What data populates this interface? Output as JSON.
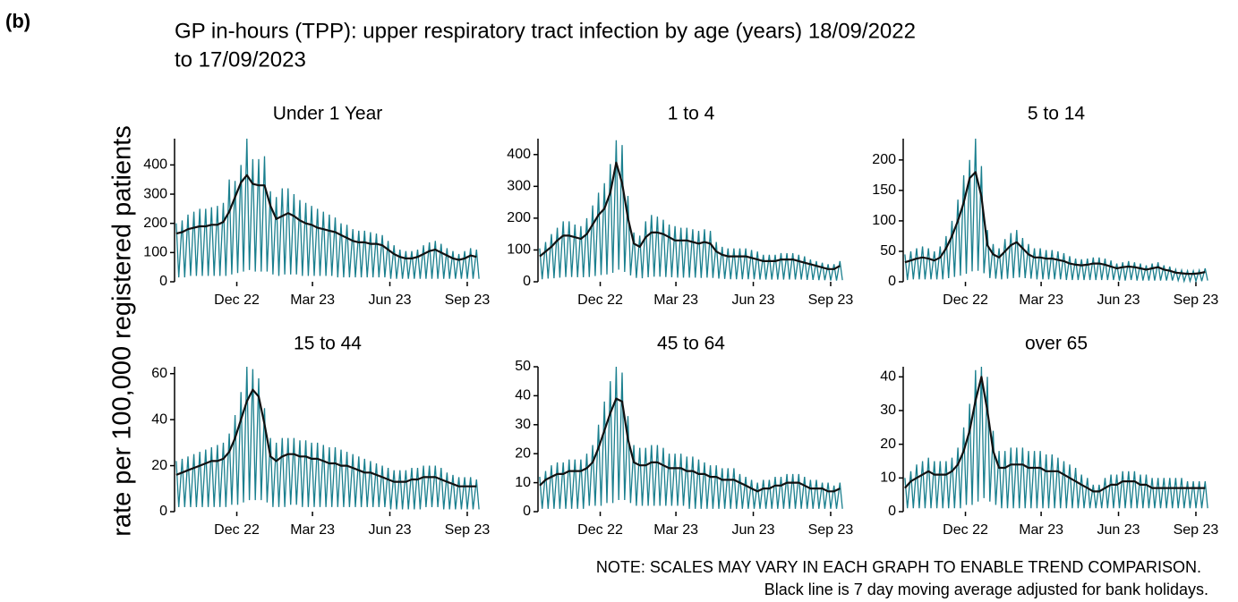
{
  "label": "(b)",
  "title_lines": [
    "GP in-hours (TPP): upper respiratory tract infection by age (years) 18/09/2022",
    "to 17/09/2023"
  ],
  "y_label": "rate per 100,000 registered patients",
  "notes": [
    "NOTE: SCALES MAY VARY IN EACH GRAPH TO ENABLE TREND COMPARISON.",
    "Black line is 7 day moving average adjusted for bank holidays."
  ],
  "daily_color": "#1a7f8e",
  "average_color": "#111111",
  "x_axis": {
    "xlim": [
      0,
      364
    ],
    "xticks": [
      {
        "value": 74,
        "label": "Dec 22"
      },
      {
        "value": 164,
        "label": "Mar 23"
      },
      {
        "value": 256,
        "label": "Jun 23"
      },
      {
        "value": 348,
        "label": "Sep 23"
      }
    ],
    "x_peak": [
      2,
      9,
      16,
      23,
      30,
      37,
      44,
      51,
      58,
      65,
      72,
      79,
      86,
      93,
      100,
      107,
      114,
      121,
      128,
      135,
      142,
      149,
      156,
      163,
      170,
      177,
      184,
      191,
      198,
      205,
      212,
      219,
      226,
      233,
      240,
      247,
      254,
      261,
      268,
      275,
      282,
      289,
      296,
      303,
      310,
      317,
      324,
      331,
      338,
      345,
      352,
      359
    ],
    "x_low": [
      5,
      12,
      19,
      26,
      33,
      40,
      47,
      54,
      61,
      68,
      75,
      82,
      89,
      96,
      103,
      110,
      117,
      124,
      131,
      138,
      145,
      152,
      159,
      166,
      173,
      180,
      187,
      194,
      201,
      208,
      215,
      222,
      229,
      236,
      243,
      250,
      257,
      264,
      271,
      278,
      285,
      292,
      299,
      306,
      313,
      320,
      327,
      334,
      341,
      348,
      355,
      362
    ]
  },
  "chart_data": [
    {
      "type": "line",
      "title": "Under 1 Year",
      "ylim": [
        0,
        490
      ],
      "yticks": [
        0,
        100,
        200,
        300,
        400
      ],
      "peaks": [
        200,
        210,
        230,
        240,
        250,
        250,
        255,
        260,
        270,
        350,
        345,
        400,
        490,
        420,
        420,
        430,
        310,
        290,
        320,
        320,
        300,
        280,
        270,
        260,
        250,
        240,
        230,
        220,
        200,
        195,
        180,
        175,
        175,
        170,
        165,
        160,
        140,
        125,
        110,
        105,
        105,
        110,
        125,
        135,
        140,
        130,
        115,
        105,
        95,
        105,
        115,
        110
      ],
      "lows": [
        15,
        15,
        20,
        20,
        20,
        20,
        20,
        20,
        20,
        25,
        30,
        35,
        40,
        35,
        35,
        35,
        25,
        20,
        25,
        25,
        25,
        20,
        20,
        20,
        20,
        20,
        20,
        15,
        15,
        15,
        15,
        15,
        15,
        15,
        15,
        15,
        10,
        10,
        10,
        10,
        10,
        10,
        10,
        10,
        10,
        10,
        10,
        10,
        10,
        10,
        10,
        10
      ],
      "average": [
        165,
        170,
        180,
        185,
        190,
        190,
        195,
        195,
        205,
        240,
        290,
        340,
        365,
        335,
        330,
        330,
        260,
        215,
        225,
        235,
        225,
        210,
        200,
        195,
        185,
        180,
        175,
        170,
        160,
        150,
        140,
        135,
        135,
        130,
        130,
        125,
        110,
        95,
        85,
        80,
        80,
        85,
        95,
        105,
        110,
        100,
        90,
        80,
        75,
        80,
        90,
        85
      ]
    },
    {
      "type": "line",
      "title": "1 to 4",
      "ylim": [
        0,
        450
      ],
      "yticks": [
        0,
        100,
        200,
        300,
        400
      ],
      "peaks": [
        105,
        125,
        150,
        170,
        190,
        190,
        180,
        175,
        200,
        240,
        280,
        310,
        370,
        445,
        430,
        270,
        155,
        145,
        190,
        210,
        205,
        195,
        180,
        175,
        170,
        170,
        165,
        160,
        165,
        160,
        125,
        110,
        105,
        105,
        105,
        105,
        100,
        95,
        85,
        85,
        85,
        90,
        90,
        90,
        85,
        80,
        70,
        65,
        60,
        55,
        55,
        65
      ],
      "lows": [
        8,
        10,
        11,
        13,
        15,
        15,
        14,
        14,
        15,
        18,
        21,
        23,
        28,
        38,
        31,
        20,
        12,
        11,
        14,
        16,
        16,
        15,
        14,
        13,
        13,
        13,
        13,
        12,
        13,
        12,
        10,
        9,
        8,
        8,
        8,
        8,
        8,
        7,
        7,
        7,
        7,
        7,
        7,
        7,
        7,
        6,
        6,
        5,
        5,
        4,
        4,
        5
      ],
      "average": [
        80,
        95,
        110,
        130,
        145,
        145,
        140,
        135,
        150,
        180,
        210,
        230,
        280,
        375,
        310,
        200,
        120,
        110,
        140,
        155,
        155,
        150,
        140,
        130,
        130,
        130,
        125,
        120,
        125,
        120,
        95,
        85,
        80,
        80,
        80,
        80,
        75,
        70,
        65,
        65,
        65,
        70,
        70,
        70,
        65,
        60,
        55,
        50,
        45,
        40,
        40,
        50
      ]
    },
    {
      "type": "line",
      "title": "5 to 14",
      "ylim": [
        0,
        235
      ],
      "yticks": [
        0,
        50,
        100,
        150,
        200
      ],
      "peaks": [
        45,
        50,
        55,
        58,
        55,
        50,
        58,
        75,
        100,
        135,
        175,
        200,
        235,
        190,
        85,
        62,
        55,
        70,
        80,
        85,
        72,
        62,
        55,
        55,
        52,
        52,
        50,
        47,
        42,
        38,
        37,
        38,
        40,
        40,
        38,
        35,
        30,
        32,
        34,
        32,
        30,
        27,
        30,
        32,
        27,
        25,
        20,
        19,
        18,
        18,
        19,
        22
      ],
      "lows": [
        3,
        4,
        4,
        4,
        4,
        4,
        4,
        6,
        8,
        10,
        13,
        17,
        18,
        14,
        6,
        5,
        4,
        5,
        6,
        7,
        6,
        5,
        4,
        4,
        4,
        4,
        4,
        3,
        3,
        3,
        3,
        3,
        3,
        3,
        3,
        3,
        2,
        2,
        3,
        2,
        2,
        2,
        2,
        2,
        2,
        2,
        2,
        1,
        1,
        1,
        1,
        2
      ],
      "average": [
        32,
        35,
        38,
        40,
        38,
        35,
        40,
        55,
        75,
        100,
        130,
        170,
        180,
        140,
        60,
        45,
        40,
        50,
        60,
        65,
        55,
        45,
        40,
        40,
        38,
        38,
        36,
        34,
        30,
        28,
        27,
        28,
        30,
        30,
        28,
        25,
        22,
        24,
        25,
        24,
        22,
        20,
        22,
        24,
        20,
        18,
        15,
        14,
        13,
        13,
        14,
        16
      ]
    },
    {
      "type": "line",
      "title": "15 to 44",
      "ylim": [
        0,
        63
      ],
      "yticks": [
        0,
        20,
        40,
        60
      ],
      "peaks": [
        22,
        23,
        24,
        25,
        26,
        27,
        28,
        29,
        30,
        34,
        42,
        52,
        63,
        62,
        58,
        45,
        32,
        30,
        32,
        32,
        32,
        31,
        31,
        30,
        30,
        29,
        28,
        28,
        27,
        26,
        25,
        24,
        23,
        22,
        21,
        20,
        19,
        18,
        18,
        18,
        19,
        19,
        20,
        20,
        20,
        19,
        17,
        16,
        15,
        15,
        15,
        14
      ],
      "lows": [
        2,
        2,
        2,
        2,
        2,
        2,
        2,
        2,
        2,
        3,
        3,
        4,
        5,
        5,
        5,
        4,
        2,
        2,
        2,
        3,
        3,
        2,
        2,
        2,
        2,
        2,
        2,
        2,
        2,
        2,
        2,
        2,
        2,
        2,
        2,
        2,
        1,
        1,
        1,
        1,
        1,
        1,
        2,
        2,
        2,
        1,
        1,
        1,
        1,
        1,
        1,
        1
      ],
      "average": [
        16,
        17,
        18,
        19,
        20,
        21,
        22,
        22,
        23,
        26,
        32,
        40,
        48,
        53,
        50,
        38,
        24,
        22,
        24,
        25,
        25,
        24,
        24,
        23,
        23,
        22,
        21,
        21,
        20,
        20,
        19,
        18,
        17,
        17,
        16,
        15,
        14,
        13,
        13,
        13,
        14,
        14,
        15,
        15,
        15,
        14,
        13,
        12,
        11,
        11,
        11,
        11
      ]
    },
    {
      "type": "line",
      "title": "45 to 64",
      "ylim": [
        0,
        50
      ],
      "yticks": [
        0,
        10,
        20,
        30,
        40,
        50
      ],
      "peaks": [
        12,
        14,
        16,
        17,
        17,
        18,
        18,
        18,
        20,
        23,
        30,
        38,
        45,
        50,
        48,
        33,
        23,
        22,
        22,
        23,
        23,
        22,
        20,
        20,
        20,
        19,
        19,
        18,
        17,
        16,
        16,
        15,
        15,
        15,
        13,
        12,
        11,
        10,
        11,
        11,
        12,
        12,
        13,
        13,
        13,
        12,
        11,
        11,
        10,
        10,
        9,
        10
      ],
      "lows": [
        1,
        1,
        1,
        1,
        1,
        1,
        1,
        1,
        2,
        2,
        2,
        3,
        3,
        4,
        4,
        3,
        2,
        2,
        2,
        2,
        2,
        2,
        2,
        2,
        2,
        1,
        1,
        1,
        1,
        1,
        1,
        1,
        1,
        1,
        1,
        1,
        1,
        1,
        1,
        1,
        1,
        1,
        1,
        1,
        1,
        1,
        1,
        1,
        1,
        1,
        1,
        1
      ],
      "average": [
        9,
        11,
        12,
        13,
        13,
        14,
        14,
        14,
        15,
        17,
        22,
        28,
        34,
        39,
        38,
        25,
        17,
        16,
        16,
        17,
        17,
        16,
        15,
        15,
        15,
        14,
        14,
        13,
        13,
        12,
        12,
        11,
        11,
        11,
        10,
        9,
        8,
        7,
        8,
        8,
        9,
        9,
        10,
        10,
        10,
        9,
        8,
        8,
        8,
        7,
        7,
        8
      ]
    },
    {
      "type": "line",
      "title": "over 65",
      "ylim": [
        0,
        43
      ],
      "yticks": [
        0,
        10,
        20,
        30,
        40
      ],
      "peaks": [
        10,
        12,
        14,
        15,
        16,
        15,
        15,
        15,
        16,
        19,
        25,
        32,
        42,
        43,
        40,
        24,
        18,
        18,
        19,
        19,
        19,
        18,
        18,
        18,
        17,
        17,
        16,
        15,
        14,
        13,
        11,
        10,
        8,
        8,
        10,
        11,
        11,
        12,
        12,
        12,
        11,
        11,
        10,
        10,
        10,
        10,
        10,
        10,
        9,
        9,
        9,
        9
      ],
      "lows": [
        1,
        1,
        1,
        1,
        1,
        1,
        1,
        1,
        1,
        1,
        2,
        2,
        3,
        4,
        3,
        2,
        1,
        1,
        1,
        1,
        1,
        1,
        1,
        1,
        1,
        1,
        1,
        1,
        1,
        1,
        1,
        1,
        1,
        1,
        1,
        1,
        1,
        1,
        1,
        1,
        1,
        1,
        1,
        1,
        1,
        1,
        1,
        1,
        1,
        1,
        1,
        1
      ],
      "average": [
        7,
        9,
        10,
        11,
        12,
        11,
        11,
        11,
        12,
        14,
        18,
        24,
        33,
        40,
        30,
        18,
        13,
        13,
        14,
        14,
        14,
        13,
        13,
        13,
        12,
        12,
        12,
        11,
        10,
        9,
        8,
        7,
        6,
        6,
        7,
        8,
        8,
        9,
        9,
        9,
        8,
        8,
        7,
        7,
        7,
        7,
        7,
        7,
        7,
        7,
        7,
        7
      ]
    }
  ]
}
